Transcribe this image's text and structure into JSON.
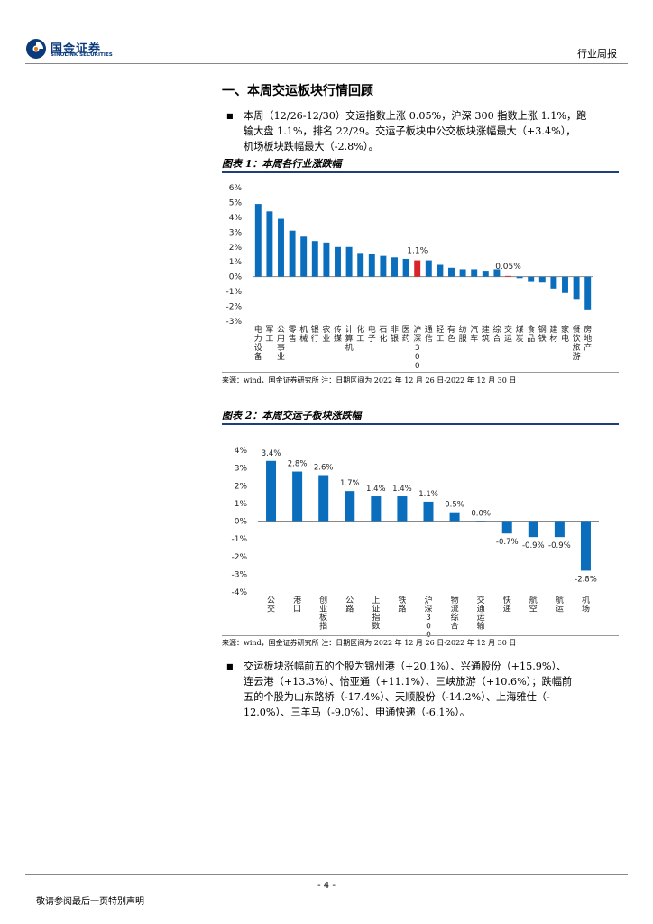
{
  "header": {
    "logo_cn": "国金证券",
    "logo_en": "SINOLINK SECURITIES",
    "report_type": "行业周报"
  },
  "section": {
    "title": "一、本周交运板块行情回顾"
  },
  "paragraphs": {
    "p1_line1": "本周（12/26-12/30）交运指数上涨 0.05%，沪深 300 指数上涨 1.1%，跑",
    "p1_line2": "输大盘 1.1%，排名 22/29。交运子板块中公交板块涨幅最大（+3.4%），",
    "p1_line3": "机场板块跌幅最大（-2.8%）。",
    "p2_line1": "交运板块涨幅前五的个股为锦州港（+20.1%）、兴通股份（+15.9%）、",
    "p2_line2": "连云港（+13.3%）、怡亚通（+11.1%）、三峡旅游（+10.6%）；跌幅前",
    "p2_line3": "五的个股为山东路桥（-17.4%）、天顺股份（-14.2%）、上海雅仕（-",
    "p2_line4": "12.0%）、三羊马（-9.0%）、申通快递（-6.1%）。"
  },
  "figure1": {
    "title": "图表 1：本周各行业涨跌幅",
    "source": "来源：wind，国金证券研究所 注：日期区间为 2022 年 12 月 26 日-2022 年 12 月 30 日"
  },
  "figure2": {
    "title": "图表 2：本周交运子板块涨跌幅",
    "source": "来源：wind，国金证券研究所 注：日期区间为 2022 年 12 月 26 日-2022 年 12 月 30 日"
  },
  "footer": {
    "page": "- 4 -",
    "note": "敬请参阅最后一页特别声明"
  },
  "colors": {
    "bar": "#0a6ebd",
    "highlight_csi300": "#d9232a",
    "highlight_transport": "#d9232a",
    "brand": "#0a3a7a"
  },
  "chart_data": [
    {
      "type": "bar",
      "title": "图表 1：本周各行业涨跌幅",
      "categories": [
        "电力设备",
        "军工",
        "公用事业",
        "零售",
        "机械",
        "银行",
        "农业",
        "传媒",
        "计算机",
        "化工",
        "电子",
        "石化",
        "非银",
        "医药",
        "沪深300",
        "通信",
        "轻工",
        "有色",
        "纺服",
        "汽车",
        "建筑",
        "综合",
        "交运",
        "煤炭",
        "食品",
        "钢铁",
        "建材",
        "家电",
        "餐饮旅游",
        "房地产"
      ],
      "values": [
        4.9,
        4.4,
        3.9,
        3.1,
        2.7,
        2.4,
        2.3,
        2.0,
        2.0,
        1.6,
        1.5,
        1.4,
        1.3,
        1.2,
        1.1,
        1.1,
        0.8,
        0.6,
        0.5,
        0.5,
        0.4,
        0.5,
        0.05,
        -0.1,
        -0.3,
        -0.4,
        -0.8,
        -1.1,
        -1.5,
        -2.2
      ],
      "data_labels": [
        {
          "category": "沪深300",
          "text": "1.1%"
        },
        {
          "category": "交运",
          "text": "0.05%"
        }
      ],
      "highlighted": [
        "沪深300",
        "交运"
      ],
      "ylim": [
        -3,
        6
      ],
      "yticks": [
        "6%",
        "5%",
        "4%",
        "3%",
        "2%",
        "1%",
        "0%",
        "-1%",
        "-2%",
        "-3%"
      ],
      "xlabel": "",
      "ylabel": "",
      "legend": "none",
      "grid": false
    },
    {
      "type": "bar",
      "title": "图表 2：本周交运子板块涨跌幅",
      "categories": [
        "公交",
        "港口",
        "创业板指",
        "公路",
        "上证指数",
        "铁路",
        "沪深300",
        "物流综合",
        "交通运输",
        "快递",
        "航空",
        "航运",
        "机场"
      ],
      "values": [
        3.4,
        2.8,
        2.6,
        1.7,
        1.4,
        1.4,
        1.1,
        0.5,
        0.0,
        -0.7,
        -0.9,
        -0.9,
        -2.8
      ],
      "value_labels": [
        "3.4%",
        "2.8%",
        "2.6%",
        "1.7%",
        "1.4%",
        "1.4%",
        "1.1%",
        "0.5%",
        "0.0%",
        "-0.7%",
        "-0.9%",
        "-0.9%",
        "-2.8%"
      ],
      "ylim": [
        -4,
        4
      ],
      "yticks": [
        "4%",
        "3%",
        "2%",
        "1%",
        "0%",
        "-1%",
        "-2%",
        "-3%",
        "-4%"
      ],
      "xlabel": "",
      "ylabel": "",
      "legend": "none",
      "grid": false
    }
  ]
}
